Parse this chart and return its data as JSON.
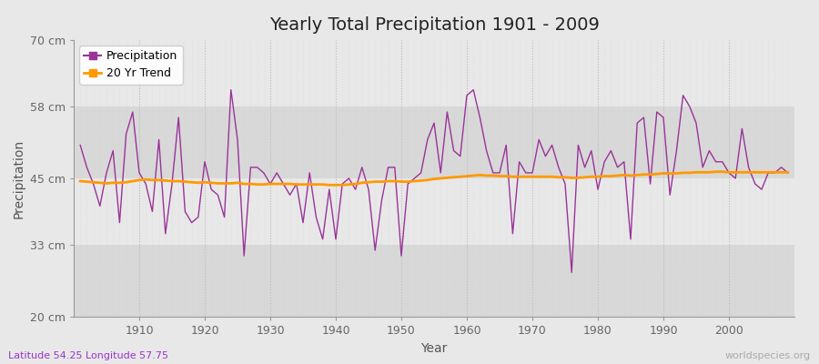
{
  "title": "Yearly Total Precipitation 1901 - 2009",
  "xlabel": "Year",
  "ylabel": "Precipitation",
  "bottom_left_label": "Latitude 54.25 Longitude 57.75",
  "bottom_right_label": "worldspecies.org",
  "years": [
    1901,
    1902,
    1903,
    1904,
    1905,
    1906,
    1907,
    1908,
    1909,
    1910,
    1911,
    1912,
    1913,
    1914,
    1915,
    1916,
    1917,
    1918,
    1919,
    1920,
    1921,
    1922,
    1923,
    1924,
    1925,
    1926,
    1927,
    1928,
    1929,
    1930,
    1931,
    1932,
    1933,
    1934,
    1935,
    1936,
    1937,
    1938,
    1939,
    1940,
    1941,
    1942,
    1943,
    1944,
    1945,
    1946,
    1947,
    1948,
    1949,
    1950,
    1951,
    1952,
    1953,
    1954,
    1955,
    1956,
    1957,
    1958,
    1959,
    1960,
    1961,
    1962,
    1963,
    1964,
    1965,
    1966,
    1967,
    1968,
    1969,
    1970,
    1971,
    1972,
    1973,
    1974,
    1975,
    1976,
    1977,
    1978,
    1979,
    1980,
    1981,
    1982,
    1983,
    1984,
    1985,
    1986,
    1987,
    1988,
    1989,
    1990,
    1991,
    1992,
    1993,
    1994,
    1995,
    1996,
    1997,
    1998,
    1999,
    2000,
    2001,
    2002,
    2003,
    2004,
    2005,
    2006,
    2007,
    2008,
    2009
  ],
  "precipitation": [
    51,
    47,
    44,
    40,
    46,
    50,
    37,
    53,
    57,
    46,
    44,
    39,
    52,
    35,
    44,
    56,
    39,
    37,
    38,
    48,
    43,
    42,
    38,
    61,
    52,
    31,
    47,
    47,
    46,
    44,
    46,
    44,
    42,
    44,
    37,
    46,
    38,
    34,
    43,
    34,
    44,
    45,
    43,
    47,
    43,
    32,
    41,
    47,
    47,
    31,
    44,
    45,
    46,
    52,
    55,
    46,
    57,
    50,
    49,
    60,
    61,
    56,
    50,
    46,
    46,
    51,
    35,
    48,
    46,
    46,
    52,
    49,
    51,
    47,
    44,
    28,
    51,
    47,
    50,
    43,
    48,
    50,
    47,
    48,
    34,
    55,
    56,
    44,
    57,
    56,
    42,
    50,
    60,
    58,
    55,
    47,
    50,
    48,
    48,
    46,
    45,
    54,
    47,
    44,
    43,
    46,
    46,
    47,
    46
  ],
  "trend": [
    44.5,
    44.4,
    44.3,
    44.2,
    44.1,
    44.2,
    44.2,
    44.3,
    44.5,
    44.7,
    44.8,
    44.7,
    44.7,
    44.6,
    44.5,
    44.5,
    44.4,
    44.3,
    44.2,
    44.3,
    44.2,
    44.1,
    44.1,
    44.1,
    44.2,
    44.0,
    44.0,
    43.9,
    43.9,
    44.0,
    44.0,
    44.0,
    44.0,
    43.9,
    43.9,
    43.9,
    43.9,
    43.9,
    43.8,
    43.8,
    43.8,
    43.9,
    44.0,
    44.2,
    44.3,
    44.4,
    44.4,
    44.5,
    44.5,
    44.4,
    44.4,
    44.5,
    44.6,
    44.7,
    44.9,
    45.0,
    45.1,
    45.2,
    45.3,
    45.4,
    45.5,
    45.6,
    45.5,
    45.5,
    45.4,
    45.4,
    45.3,
    45.3,
    45.3,
    45.3,
    45.3,
    45.3,
    45.3,
    45.2,
    45.2,
    45.1,
    45.1,
    45.2,
    45.3,
    45.3,
    45.4,
    45.4,
    45.5,
    45.6,
    45.5,
    45.6,
    45.7,
    45.7,
    45.8,
    45.9,
    45.9,
    45.9,
    46.0,
    46.0,
    46.1,
    46.1,
    46.1,
    46.2,
    46.2,
    46.1,
    46.1,
    46.1,
    46.1,
    46.1,
    46.1,
    46.1,
    46.1,
    46.1,
    46.1
  ],
  "precip_color": "#993399",
  "trend_color": "#ff9900",
  "bg_color": "#e8e8e8",
  "plot_bg_light": "#e8e8e8",
  "plot_bg_dark": "#d8d8d8",
  "grid_color": "#ffffff",
  "ylim": [
    20,
    70
  ],
  "yticks": [
    20,
    33,
    45,
    58,
    70
  ],
  "ytick_labels": [
    "20 cm",
    "33 cm",
    "45 cm",
    "58 cm",
    "70 cm"
  ],
  "title_fontsize": 14,
  "axis_label_fontsize": 10,
  "tick_fontsize": 9,
  "legend_fontsize": 9
}
